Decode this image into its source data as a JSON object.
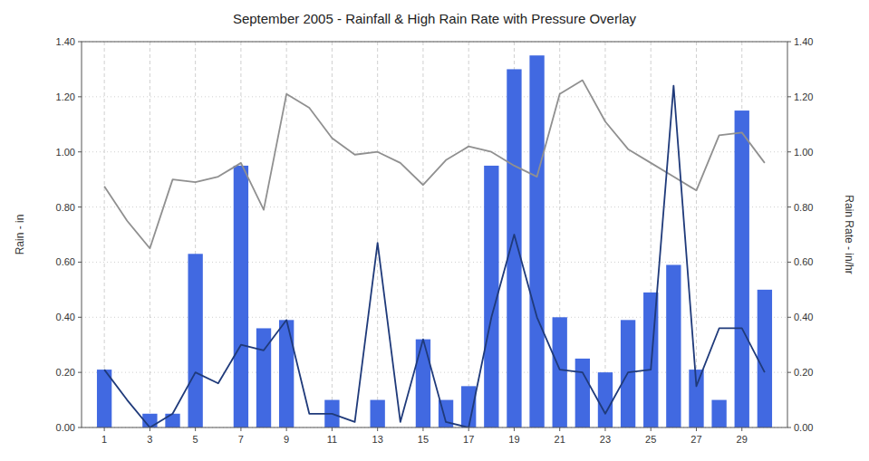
{
  "chart_data": {
    "type": "bar",
    "title": "September 2005 - Rainfall & High Rain Rate with Pressure Overlay",
    "ylabel": "Rain - in",
    "y2label": "Rain Rate - in/hr",
    "x": [
      1,
      2,
      3,
      4,
      5,
      6,
      7,
      8,
      9,
      10,
      11,
      12,
      13,
      14,
      15,
      16,
      17,
      18,
      19,
      20,
      21,
      22,
      23,
      24,
      25,
      26,
      27,
      28,
      29,
      30
    ],
    "series": [
      {
        "type": "bar",
        "color": "#4169e1",
        "values": [
          0.21,
          0.0,
          0.05,
          0.05,
          0.63,
          0.0,
          0.95,
          0.36,
          0.39,
          0.0,
          0.1,
          0.0,
          0.1,
          0.0,
          0.32,
          0.1,
          0.15,
          0.95,
          1.3,
          1.35,
          0.4,
          0.25,
          0.2,
          0.39,
          0.49,
          0.59,
          0.21,
          0.1,
          1.15,
          0.5
        ]
      },
      {
        "type": "line",
        "color": "#909090",
        "values": [
          0.875,
          0.75,
          0.65,
          0.9,
          0.89,
          0.91,
          0.96,
          0.79,
          1.21,
          1.16,
          1.05,
          0.99,
          1.0,
          0.96,
          0.88,
          0.97,
          1.02,
          1.0,
          0.95,
          0.91,
          1.21,
          1.26,
          1.11,
          1.01,
          0.96,
          0.91,
          0.86,
          1.06,
          1.07,
          0.96
        ]
      },
      {
        "type": "line",
        "color": "#1f3a7a",
        "axis": "y2",
        "values": [
          0.21,
          0.1,
          0.0,
          0.05,
          0.2,
          0.16,
          0.3,
          0.28,
          0.39,
          0.05,
          0.05,
          0.02,
          0.67,
          0.02,
          0.32,
          0.02,
          0.0,
          0.4,
          0.7,
          0.4,
          0.21,
          0.2,
          0.05,
          0.2,
          0.21,
          1.24,
          0.15,
          0.36,
          0.36,
          0.2
        ]
      }
    ],
    "xlim": [
      0.0,
      31.0
    ],
    "xticks": [
      1,
      3,
      5,
      7,
      9,
      11,
      13,
      15,
      17,
      19,
      21,
      23,
      25,
      27,
      29
    ],
    "ylim": [
      0.0,
      1.4
    ],
    "yticks": [
      {
        "value": 0.0,
        "label": "0.00"
      },
      {
        "value": 0.2,
        "label": "0.20"
      },
      {
        "value": 0.4,
        "label": "0.40"
      },
      {
        "value": 0.6,
        "label": "0.60"
      },
      {
        "value": 0.8,
        "label": "0.80"
      },
      {
        "value": 1.0,
        "label": "1.00"
      },
      {
        "value": 1.2,
        "label": "1.20"
      },
      {
        "value": 1.4,
        "label": "1.40"
      }
    ],
    "y2lim": [
      0.0,
      1.4
    ],
    "y2ticks": [
      {
        "value": 0.0,
        "label": "0.00"
      },
      {
        "value": 0.2,
        "label": "0.20"
      },
      {
        "value": 0.4,
        "label": "0.40"
      },
      {
        "value": 0.6,
        "label": "0.60"
      },
      {
        "value": 0.8,
        "label": "0.80"
      },
      {
        "value": 1.0,
        "label": "1.00"
      },
      {
        "value": 1.2,
        "label": "1.20"
      },
      {
        "value": 1.4,
        "label": "1.40"
      }
    ],
    "grid": true
  }
}
